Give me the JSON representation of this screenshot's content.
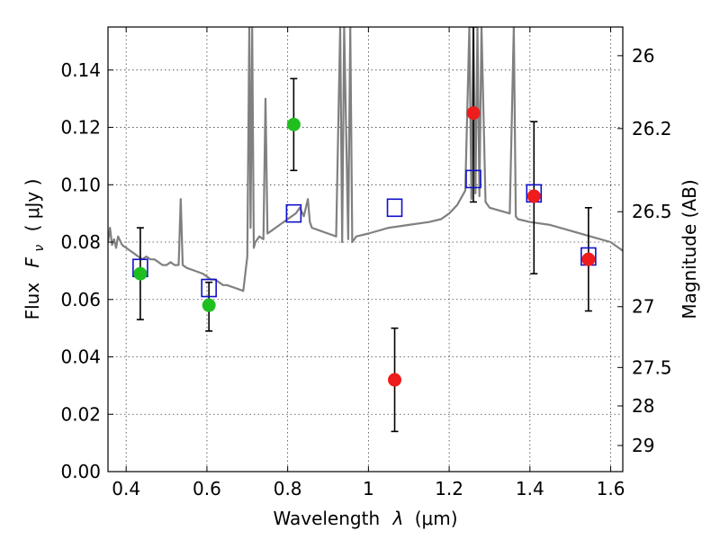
{
  "chart_data": {
    "type": "scatter",
    "title": "",
    "xlabel": "Wavelength",
    "xlabel_symbol": "λ",
    "xlabel_unit": "(μm)",
    "ylabel_prefix": "Flux",
    "ylabel_symbol": "F",
    "ylabel_subscript": "ν",
    "ylabel_unit": "( μJy )",
    "y2label": "Magnitude (AB)",
    "xlim": [
      0.355,
      1.63
    ],
    "ylim": [
      0.0,
      0.155
    ],
    "grid": true,
    "x_ticks": [
      0.4,
      0.6,
      0.8,
      1.0,
      1.2,
      1.4,
      1.6
    ],
    "x_tick_labels": [
      "0.4",
      "0.6",
      "0.8",
      "1",
      "1.2",
      "1.4",
      "1.6"
    ],
    "y_ticks": [
      0.0,
      0.02,
      0.04,
      0.06,
      0.08,
      0.1,
      0.12,
      0.14
    ],
    "y_tick_labels": [
      "0.00",
      "0.02",
      "0.04",
      "0.06",
      "0.08",
      "0.10",
      "0.12",
      "0.14"
    ],
    "y2_ticks": [
      {
        "label": "26",
        "flux": 0.145
      },
      {
        "label": "26.2",
        "flux": 0.1196
      },
      {
        "label": "26.5",
        "flux": 0.0906
      },
      {
        "label": "27",
        "flux": 0.0575
      },
      {
        "label": "27.5",
        "flux": 0.0363
      },
      {
        "label": "28",
        "flux": 0.0229
      },
      {
        "label": "29",
        "flux": 0.0091
      }
    ],
    "colors": {
      "model": "#808080",
      "green": "#1fbf1f",
      "red": "#ee1c1c",
      "square": "#1010cc",
      "errorbar": "#000000"
    },
    "series": [
      {
        "name": "model-spectrum",
        "kind": "line",
        "x": [
          0.355,
          0.36,
          0.365,
          0.37,
          0.375,
          0.38,
          0.39,
          0.4,
          0.41,
          0.42,
          0.43,
          0.44,
          0.45,
          0.46,
          0.47,
          0.48,
          0.49,
          0.5,
          0.51,
          0.52,
          0.53,
          0.535,
          0.54,
          0.55,
          0.57,
          0.59,
          0.6,
          0.61,
          0.62,
          0.63,
          0.64,
          0.65,
          0.67,
          0.69,
          0.7,
          0.705,
          0.708,
          0.712,
          0.716,
          0.72,
          0.73,
          0.74,
          0.745,
          0.75,
          0.76,
          0.78,
          0.8,
          0.82,
          0.83,
          0.84,
          0.85,
          0.855,
          0.86,
          0.88,
          0.9,
          0.92,
          0.93,
          0.935,
          0.94,
          0.95,
          0.955,
          0.96,
          0.97,
          1.0,
          1.05,
          1.1,
          1.15,
          1.18,
          1.2,
          1.22,
          1.24,
          1.25,
          1.255,
          1.26,
          1.265,
          1.27,
          1.275,
          1.28,
          1.29,
          1.3,
          1.35,
          1.36,
          1.365,
          1.37,
          1.4,
          1.45,
          1.5,
          1.55,
          1.6,
          1.63
        ],
        "y": [
          0.08,
          0.085,
          0.079,
          0.081,
          0.078,
          0.082,
          0.079,
          0.078,
          0.077,
          0.076,
          0.075,
          0.074,
          0.075,
          0.074,
          0.074,
          0.073,
          0.072,
          0.072,
          0.073,
          0.072,
          0.072,
          0.095,
          0.072,
          0.071,
          0.07,
          0.069,
          0.068,
          0.067,
          0.067,
          0.066,
          0.065,
          0.065,
          0.064,
          0.063,
          0.075,
          0.155,
          0.085,
          0.155,
          0.078,
          0.08,
          0.082,
          0.081,
          0.13,
          0.083,
          0.084,
          0.086,
          0.088,
          0.09,
          0.092,
          0.089,
          0.095,
          0.087,
          0.085,
          0.084,
          0.083,
          0.082,
          0.155,
          0.08,
          0.155,
          0.081,
          0.155,
          0.08,
          0.082,
          0.083,
          0.085,
          0.086,
          0.087,
          0.088,
          0.09,
          0.093,
          0.098,
          0.155,
          0.095,
          0.155,
          0.097,
          0.155,
          0.096,
          0.155,
          0.094,
          0.092,
          0.09,
          0.155,
          0.089,
          0.088,
          0.087,
          0.086,
          0.084,
          0.082,
          0.08,
          0.077
        ]
      },
      {
        "name": "green-photometry",
        "kind": "circle",
        "x": [
          0.435,
          0.605,
          0.815
        ],
        "y": [
          0.069,
          0.058,
          0.121
        ],
        "yerr_low": [
          0.053,
          0.049,
          0.105
        ],
        "yerr_high": [
          0.085,
          0.066,
          0.137
        ]
      },
      {
        "name": "red-photometry",
        "kind": "circle",
        "x": [
          1.065,
          1.26,
          1.41,
          1.545
        ],
        "y": [
          0.032,
          0.125,
          0.096,
          0.074
        ],
        "yerr_low": [
          0.014,
          0.094,
          0.069,
          0.056
        ],
        "yerr_high": [
          0.05,
          0.155,
          0.122,
          0.092
        ]
      },
      {
        "name": "model-bandpass-squares",
        "kind": "square",
        "x": [
          0.435,
          0.605,
          0.815,
          1.065,
          1.26,
          1.41,
          1.545
        ],
        "y": [
          0.071,
          0.064,
          0.09,
          0.092,
          0.102,
          0.097,
          0.075
        ]
      }
    ]
  }
}
